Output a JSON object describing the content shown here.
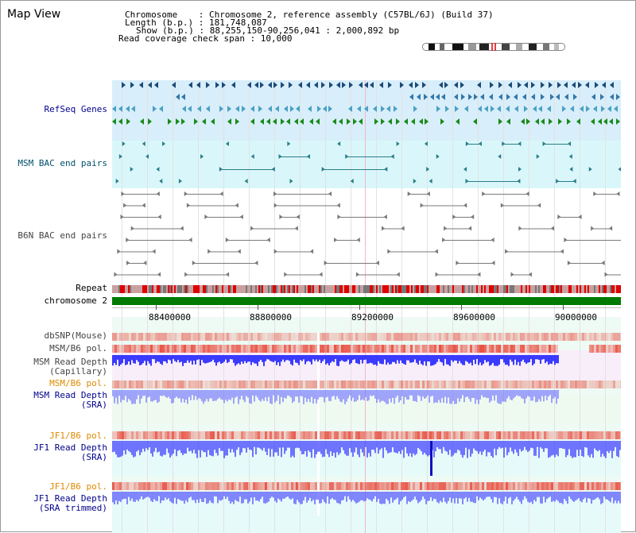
{
  "title": "Map View",
  "info": {
    "chromosome_label": "Chromosome    : Chromosome 2, reference assembly (C57BL/6J) (Build 37)",
    "length_label": "Length (b.p.) : 181,748,087",
    "show_label": "Show (b.p.) : 88,255,150-90,256,041 : 2,000,892 bp",
    "coverage_label": "Read coverage check span : 10,000"
  },
  "tracks": {
    "refseq": "RefSeq Genes",
    "msm_bac": "MSM BAC end pairs",
    "b6n_bac": "B6N BAC end pairs",
    "repeat": "Repeat",
    "chromosome": "chromosome 2",
    "dbsnp": "dbSNP(Mouse)",
    "msm_b6_pol_1": "MSM/B6 pol.",
    "msm_read_depth_cap_1": "MSM Read Depth",
    "msm_read_depth_cap_2": "(Capillary)",
    "msm_b6_pol_2": "MSM/B6 pol.",
    "msm_read_depth_sra_1": "MSM Read Depth",
    "msm_read_depth_sra_2": "(SRA)",
    "jf1_b6_pol_1": "JF1/B6 pol.",
    "jf1_read_depth_sra_1": "JF1 Read Depth",
    "jf1_read_depth_sra_2": "(SRA)",
    "jf1_b6_pol_2": "JF1/B6 pol.",
    "jf1_read_depth_trim_1": "JF1 Read Depth",
    "jf1_read_depth_trim_2": "(SRA trimmed)"
  },
  "axis": {
    "ticks": [
      "88400000",
      "88800000",
      "89200000",
      "89600000",
      "90000000"
    ]
  },
  "colors": {
    "refseq_bg": "#d8eefa",
    "msm_bg": "#d9f7fa",
    "repeat_red": "#e00000",
    "chromosome_green": "#007a00",
    "depth_blue": "#1a1aff",
    "pol_red": "#e8483a"
  }
}
